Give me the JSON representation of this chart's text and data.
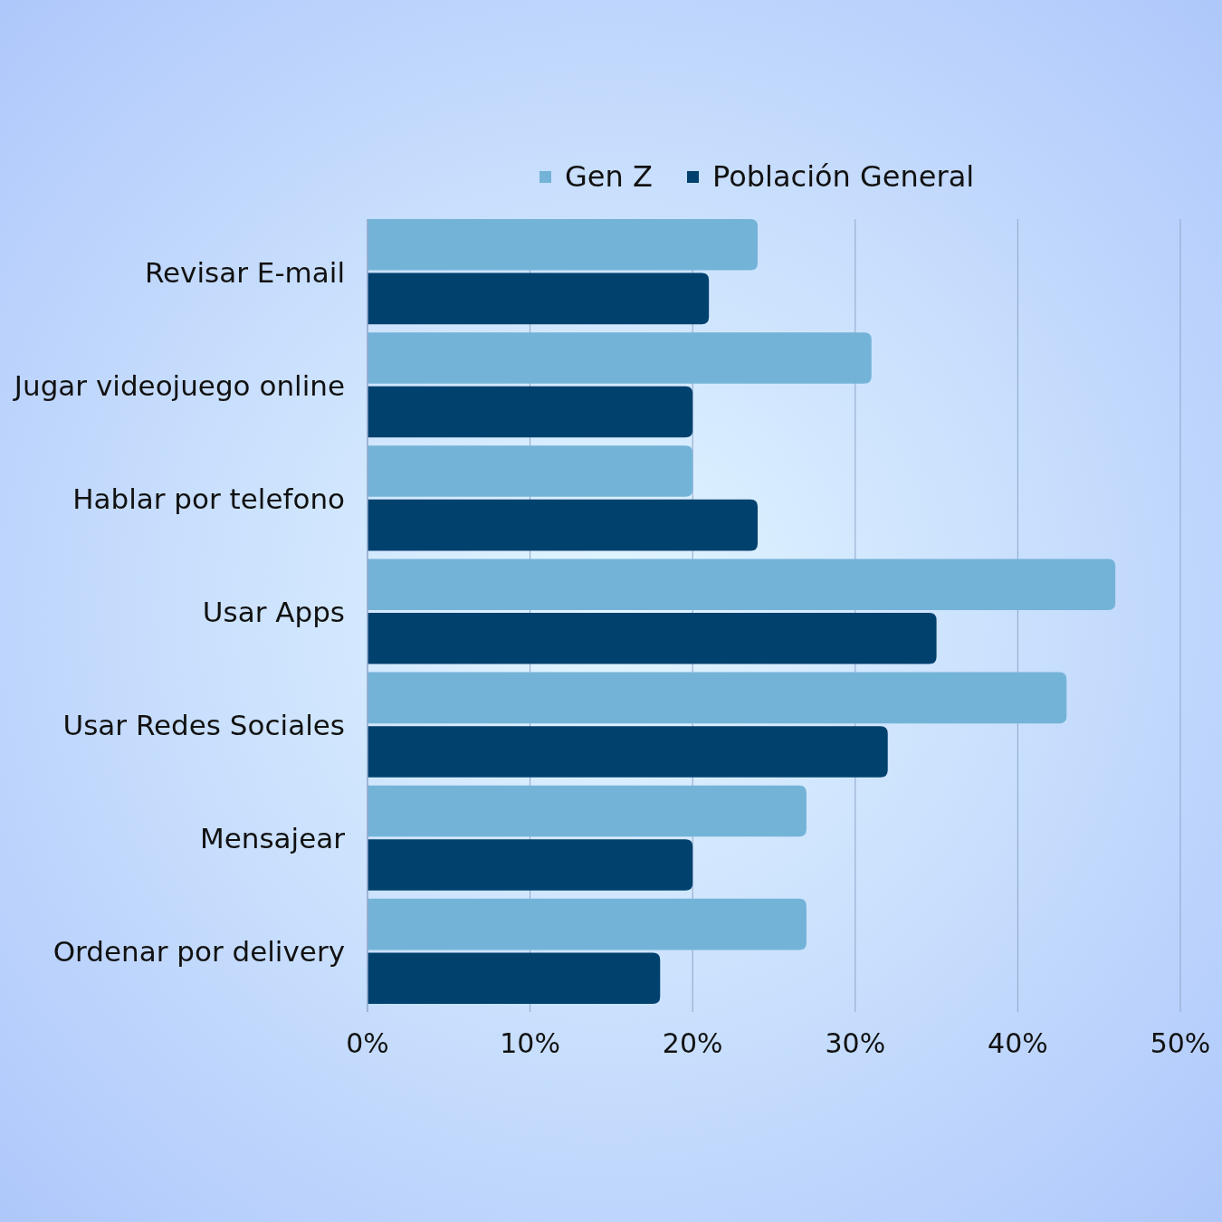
{
  "chart_data": {
    "type": "bar",
    "orientation": "horizontal",
    "categories": [
      "Revisar E-mail",
      "Jugar videojuego online",
      "Hablar por telefono",
      "Usar Apps",
      "Usar Redes Sociales",
      "Mensajear",
      "Ordenar por delivery"
    ],
    "series": [
      {
        "name": "Gen Z",
        "color": "#74b3d8",
        "values": [
          24,
          31,
          20,
          46,
          43,
          27,
          27
        ]
      },
      {
        "name": "Población General",
        "color": "#00416e",
        "values": [
          21,
          20,
          24,
          35,
          32,
          20,
          18
        ]
      }
    ],
    "xlim": [
      0,
      50
    ],
    "xticks": [
      {
        "value": 0,
        "label": "0%"
      },
      {
        "value": 10,
        "label": "10%"
      },
      {
        "value": 20,
        "label": "20%"
      },
      {
        "value": 30,
        "label": "30%"
      },
      {
        "value": 40,
        "label": "40%"
      },
      {
        "value": 50,
        "label": "50%"
      }
    ],
    "grid": "x",
    "legend": "top right"
  }
}
